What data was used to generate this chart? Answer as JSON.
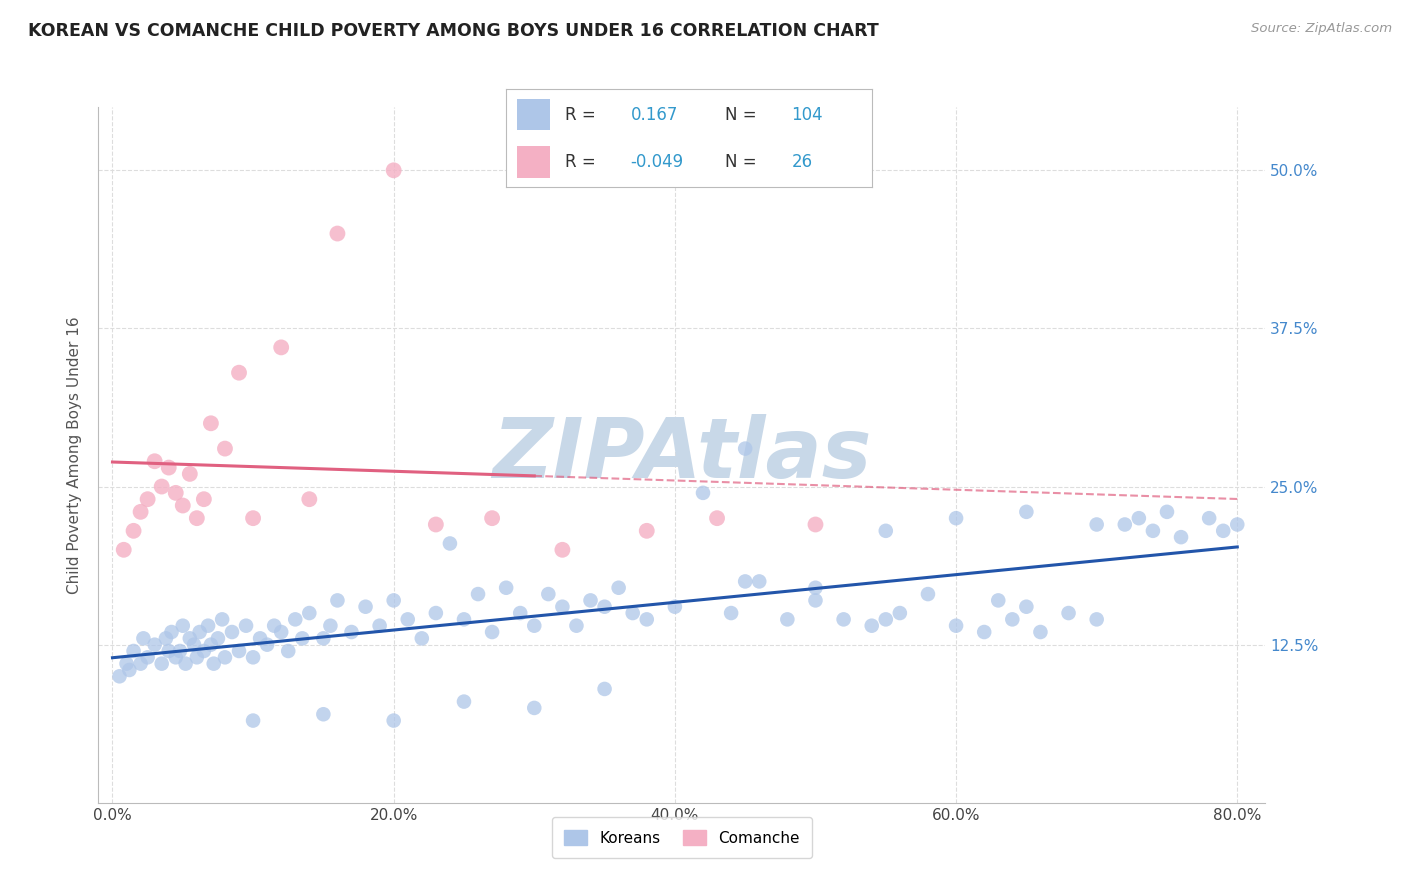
{
  "title": "KOREAN VS COMANCHE CHILD POVERTY AMONG BOYS UNDER 16 CORRELATION CHART",
  "source": "Source: ZipAtlas.com",
  "xlabel_vals": [
    0.0,
    20.0,
    40.0,
    60.0,
    80.0
  ],
  "ylabel_vals": [
    12.5,
    25.0,
    37.5,
    50.0
  ],
  "xlim": [
    -1.0,
    82.0
  ],
  "ylim": [
    0.0,
    55.0
  ],
  "korean_R": 0.167,
  "korean_N": 104,
  "comanche_R": -0.049,
  "comanche_N": 26,
  "korean_color": "#aec6e8",
  "korean_line_color": "#2255aa",
  "comanche_color": "#f4b0c4",
  "comanche_line_color": "#e06080",
  "legend_korean_box": "#aec6e8",
  "legend_comanche_box": "#f4b0c4",
  "watermark": "ZIPAtlas",
  "watermark_color": "#c8d8e8",
  "background": "#ffffff",
  "ylabel": "Child Poverty Among Boys Under 16",
  "grid_color": "#dddddd",
  "korean_x": [
    0.5,
    1.0,
    1.2,
    1.5,
    2.0,
    2.2,
    2.5,
    3.0,
    3.5,
    3.8,
    4.0,
    4.2,
    4.5,
    4.8,
    5.0,
    5.2,
    5.5,
    5.8,
    6.0,
    6.2,
    6.5,
    6.8,
    7.0,
    7.2,
    7.5,
    7.8,
    8.0,
    8.5,
    9.0,
    9.5,
    10.0,
    10.5,
    11.0,
    11.5,
    12.0,
    12.5,
    13.0,
    13.5,
    14.0,
    15.0,
    15.5,
    16.0,
    17.0,
    18.0,
    19.0,
    20.0,
    21.0,
    22.0,
    23.0,
    24.0,
    25.0,
    26.0,
    27.0,
    28.0,
    29.0,
    30.0,
    31.0,
    32.0,
    33.0,
    34.0,
    35.0,
    36.0,
    37.0,
    38.0,
    40.0,
    42.0,
    44.0,
    45.0,
    46.0,
    48.0,
    50.0,
    52.0,
    54.0,
    55.0,
    56.0,
    58.0,
    60.0,
    62.0,
    63.0,
    64.0,
    65.0,
    66.0,
    68.0,
    70.0,
    72.0,
    73.0,
    74.0,
    75.0,
    76.0,
    78.0,
    79.0,
    80.0,
    60.0,
    65.0,
    70.0,
    55.0,
    45.0,
    50.0,
    35.0,
    30.0,
    25.0,
    20.0,
    15.0,
    10.0
  ],
  "korean_y": [
    10.0,
    11.0,
    10.5,
    12.0,
    11.0,
    13.0,
    11.5,
    12.5,
    11.0,
    13.0,
    12.0,
    13.5,
    11.5,
    12.0,
    14.0,
    11.0,
    13.0,
    12.5,
    11.5,
    13.5,
    12.0,
    14.0,
    12.5,
    11.0,
    13.0,
    14.5,
    11.5,
    13.5,
    12.0,
    14.0,
    11.5,
    13.0,
    12.5,
    14.0,
    13.5,
    12.0,
    14.5,
    13.0,
    15.0,
    13.0,
    14.0,
    16.0,
    13.5,
    15.5,
    14.0,
    16.0,
    14.5,
    13.0,
    15.0,
    20.5,
    14.5,
    16.5,
    13.5,
    17.0,
    15.0,
    14.0,
    16.5,
    15.5,
    14.0,
    16.0,
    15.5,
    17.0,
    15.0,
    14.5,
    15.5,
    24.5,
    15.0,
    28.0,
    17.5,
    14.5,
    17.0,
    14.5,
    14.0,
    21.5,
    15.0,
    16.5,
    14.0,
    13.5,
    16.0,
    14.5,
    15.5,
    13.5,
    15.0,
    14.5,
    22.0,
    22.5,
    21.5,
    23.0,
    21.0,
    22.5,
    21.5,
    22.0,
    22.5,
    23.0,
    22.0,
    14.5,
    17.5,
    16.0,
    9.0,
    7.5,
    8.0,
    6.5,
    7.0,
    6.5
  ],
  "comanche_x": [
    0.8,
    1.5,
    2.0,
    2.5,
    3.0,
    3.5,
    4.0,
    4.5,
    5.0,
    5.5,
    6.0,
    6.5,
    7.0,
    8.0,
    9.0,
    10.0,
    12.0,
    14.0,
    16.0,
    20.0,
    23.0,
    27.0,
    32.0,
    38.0,
    43.0,
    50.0
  ],
  "comanche_y": [
    20.0,
    21.5,
    23.0,
    24.0,
    27.0,
    25.0,
    26.5,
    24.5,
    23.5,
    26.0,
    22.5,
    24.0,
    30.0,
    28.0,
    34.0,
    22.5,
    36.0,
    24.0,
    45.0,
    50.0,
    22.0,
    22.5,
    20.0,
    21.5,
    22.5,
    22.0
  ]
}
